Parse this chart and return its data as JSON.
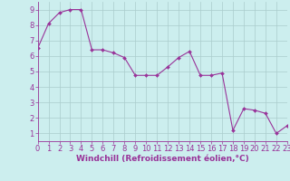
{
  "x": [
    0,
    1,
    2,
    3,
    4,
    5,
    6,
    7,
    8,
    9,
    10,
    11,
    12,
    13,
    14,
    15,
    16,
    17,
    18,
    19,
    20,
    21,
    22,
    23
  ],
  "y": [
    6.5,
    8.1,
    8.8,
    9.0,
    9.0,
    6.4,
    6.4,
    6.2,
    5.9,
    4.75,
    4.75,
    4.75,
    5.3,
    5.9,
    6.3,
    4.75,
    4.75,
    4.9,
    1.2,
    2.6,
    2.5,
    2.3,
    1.0,
    1.5
  ],
  "line_color": "#993399",
  "marker": "D",
  "marker_size": 2,
  "bg_color": "#cceeee",
  "grid_color": "#aacccc",
  "xlabel": "Windchill (Refroidissement éolien,°C)",
  "xlim": [
    0,
    23
  ],
  "ylim": [
    0.5,
    9.5
  ],
  "yticks": [
    1,
    2,
    3,
    4,
    5,
    6,
    7,
    8,
    9
  ],
  "xticks": [
    0,
    1,
    2,
    3,
    4,
    5,
    6,
    7,
    8,
    9,
    10,
    11,
    12,
    13,
    14,
    15,
    16,
    17,
    18,
    19,
    20,
    21,
    22,
    23
  ],
  "line_color_hex": "#993399",
  "tick_color": "#993399",
  "label_fontsize": 6.5,
  "tick_fontsize": 6.0
}
